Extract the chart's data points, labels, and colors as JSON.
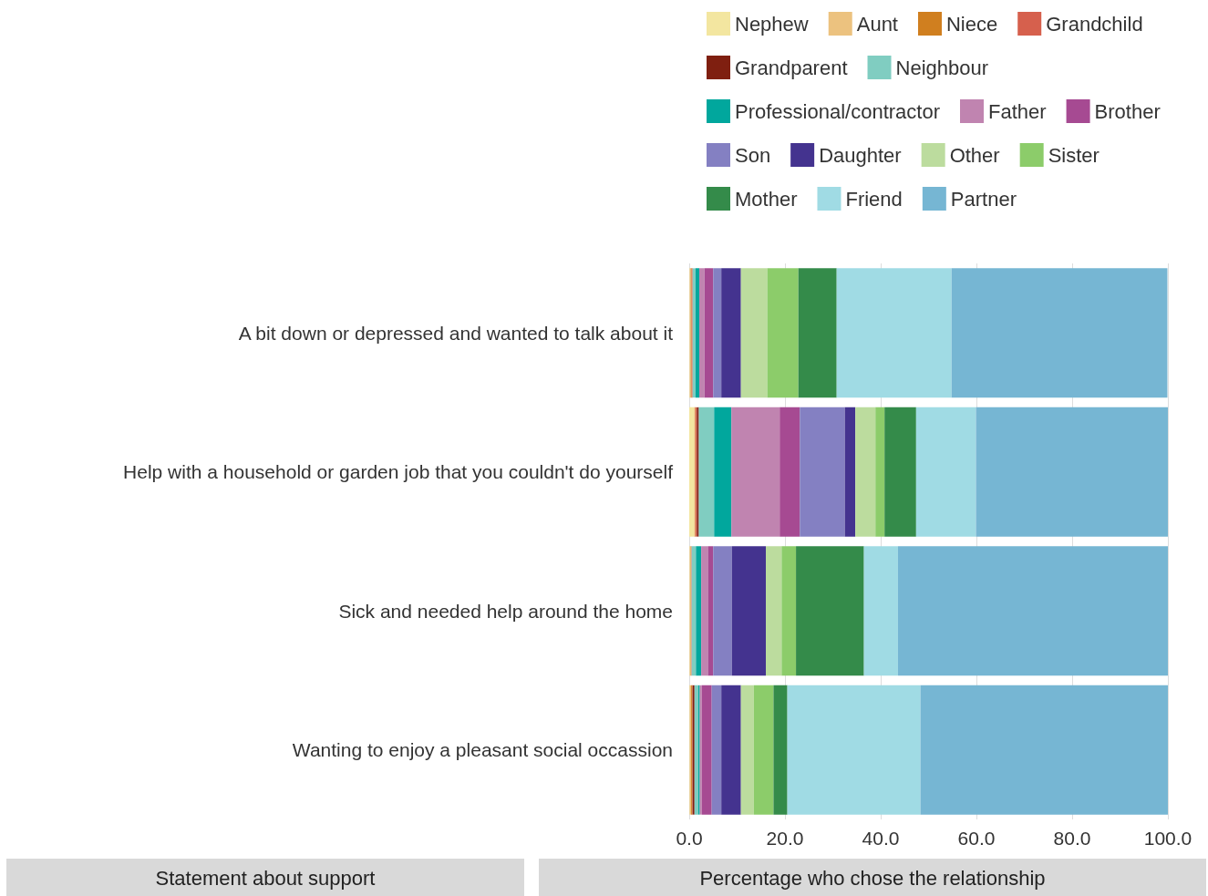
{
  "chart_data": {
    "type": "bar",
    "orientation": "horizontal",
    "stacked": true,
    "xlabel": "Percentage who chose the relationship",
    "ylabel": "Statement about support",
    "categories": [
      "A bit down or depressed and wanted to talk about it",
      "Help with a household or garden job that you couldn't do yourself",
      "Sick and needed help around the home",
      "Wanting to enjoy a pleasant social occassion"
    ],
    "series": [
      {
        "name": "Nephew",
        "color": "#f3e6a0",
        "values": [
          0.1,
          1.0,
          0.1,
          0.1
        ]
      },
      {
        "name": "Aunt",
        "color": "#ecc27f",
        "values": [
          0.2,
          0.2,
          0.2,
          0.3
        ]
      },
      {
        "name": "Niece",
        "color": "#d07f1f",
        "values": [
          0.2,
          0.1,
          0.1,
          0.2
        ]
      },
      {
        "name": "Grandchild",
        "color": "#d6604d",
        "values": [
          0.2,
          0.3,
          0.1,
          0.1
        ]
      },
      {
        "name": "Grandparent",
        "color": "#7f1f10",
        "values": [
          null,
          0.4,
          null,
          0.4
        ]
      },
      {
        "name": "Neighbour",
        "color": "#80cdc1",
        "values": [
          0.6,
          3.2,
          0.9,
          0.8
        ]
      },
      {
        "name": "Professional/contractor",
        "color": "#01a79d",
        "values": [
          0.8,
          3.6,
          1.1,
          0.3
        ]
      },
      {
        "name": "Father",
        "color": "#c084b0",
        "values": [
          1.1,
          10.1,
          1.4,
          0.4
        ]
      },
      {
        "name": "Brother",
        "color": "#a64a92",
        "values": [
          1.8,
          4.2,
          1.1,
          2.1
        ]
      },
      {
        "name": "Son",
        "color": "#8480c2",
        "values": [
          1.7,
          9.4,
          3.9,
          2.0
        ]
      },
      {
        "name": "Daughter",
        "color": "#44338f",
        "values": [
          4.1,
          2.2,
          7.1,
          4.1
        ]
      },
      {
        "name": "Other",
        "color": "#bcdc9e",
        "values": [
          5.5,
          4.2,
          3.3,
          2.7
        ]
      },
      {
        "name": "Sister",
        "color": "#8ccc6a",
        "values": [
          6.5,
          1.9,
          3.0,
          4.1
        ]
      },
      {
        "name": "Mother",
        "color": "#348b4a",
        "values": [
          8.0,
          6.6,
          14.2,
          2.9
        ]
      },
      {
        "name": "Friend",
        "color": "#a0dbe4",
        "values": [
          24.0,
          12.5,
          7.1,
          27.8
        ]
      },
      {
        "name": "Partner",
        "color": "#76b6d3",
        "values": [
          45.1,
          40.1,
          56.4,
          51.7
        ]
      }
    ],
    "xlim": [
      0,
      100
    ],
    "xticks": [
      {
        "value": 0,
        "label": "0.0"
      },
      {
        "value": 20,
        "label": "20.0"
      },
      {
        "value": 40,
        "label": "40.0"
      },
      {
        "value": 60,
        "label": "60.0"
      },
      {
        "value": 80,
        "label": "80.0"
      },
      {
        "value": 100,
        "label": "100.0"
      }
    ],
    "grid": "x",
    "legend": "top"
  }
}
